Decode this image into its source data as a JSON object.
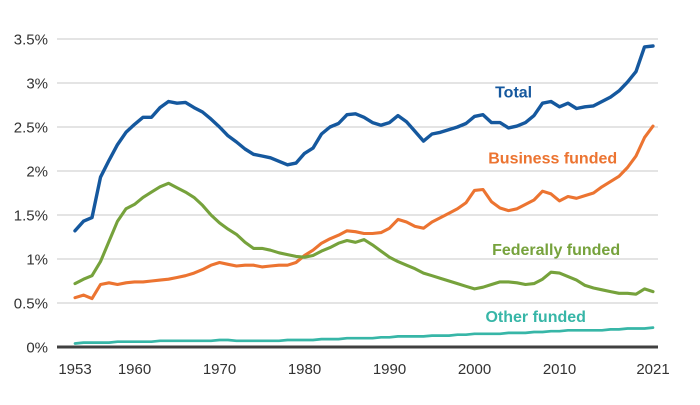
{
  "chart_data": {
    "type": "line",
    "title": "",
    "xlabel": "",
    "ylabel": "",
    "unit": "%",
    "ylim": [
      0,
      3.5
    ],
    "grid": "horizontal",
    "colors": {
      "axis": "#404040",
      "grid": "#c8c8c8",
      "tick_text": "#333333",
      "background": "#ffffff"
    },
    "yticks": [
      {
        "value": 0,
        "label": "0%"
      },
      {
        "value": 0.5,
        "label": "0.5%"
      },
      {
        "value": 1,
        "label": "1%"
      },
      {
        "value": 1.5,
        "label": "1.5%"
      },
      {
        "value": 2,
        "label": "2%"
      },
      {
        "value": 2.5,
        "label": "2.5%"
      },
      {
        "value": 3,
        "label": "3%"
      },
      {
        "value": 3.5,
        "label": "3.5%"
      }
    ],
    "xticks": [
      {
        "value": 1953,
        "label": "1953"
      },
      {
        "value": 1960,
        "label": "1960"
      },
      {
        "value": 1970,
        "label": "1970"
      },
      {
        "value": 1980,
        "label": "1980"
      },
      {
        "value": 1990,
        "label": "1990"
      },
      {
        "value": 2000,
        "label": "2000"
      },
      {
        "value": 2010,
        "label": "2010"
      },
      {
        "value": 2021,
        "label": "2021"
      }
    ],
    "x_start": 1953,
    "x_end": 2021,
    "series": [
      {
        "name": "Total",
        "color": "#15589E",
        "label": {
          "text": "Total",
          "year": 2004.6,
          "pct": 2.9
        },
        "values": [
          1.32,
          1.43,
          1.47,
          1.93,
          2.12,
          2.3,
          2.44,
          2.53,
          2.61,
          2.61,
          2.72,
          2.79,
          2.77,
          2.78,
          2.72,
          2.67,
          2.59,
          2.5,
          2.4,
          2.33,
          2.25,
          2.19,
          2.17,
          2.15,
          2.11,
          2.07,
          2.09,
          2.2,
          2.26,
          2.42,
          2.5,
          2.54,
          2.64,
          2.65,
          2.61,
          2.55,
          2.52,
          2.55,
          2.63,
          2.56,
          2.45,
          2.34,
          2.42,
          2.44,
          2.47,
          2.5,
          2.54,
          2.62,
          2.64,
          2.55,
          2.55,
          2.49,
          2.51,
          2.55,
          2.63,
          2.77,
          2.79,
          2.73,
          2.77,
          2.71,
          2.73,
          2.74,
          2.79,
          2.84,
          2.91,
          3.01,
          3.13,
          3.41,
          3.42
        ]
      },
      {
        "name": "Business funded",
        "color": "#EC7431",
        "label": {
          "text": "Business funded",
          "year": 2009.2,
          "pct": 2.15
        },
        "values": [
          0.56,
          0.59,
          0.55,
          0.71,
          0.73,
          0.71,
          0.73,
          0.74,
          0.74,
          0.75,
          0.76,
          0.77,
          0.79,
          0.81,
          0.84,
          0.88,
          0.93,
          0.96,
          0.94,
          0.92,
          0.93,
          0.93,
          0.91,
          0.92,
          0.93,
          0.93,
          0.96,
          1.04,
          1.1,
          1.18,
          1.23,
          1.27,
          1.32,
          1.31,
          1.29,
          1.29,
          1.3,
          1.35,
          1.45,
          1.42,
          1.37,
          1.35,
          1.42,
          1.47,
          1.52,
          1.57,
          1.64,
          1.78,
          1.79,
          1.65,
          1.58,
          1.55,
          1.57,
          1.62,
          1.67,
          1.77,
          1.74,
          1.66,
          1.71,
          1.69,
          1.72,
          1.75,
          1.82,
          1.88,
          1.94,
          2.04,
          2.17,
          2.38,
          2.51
        ]
      },
      {
        "name": "Federally funded",
        "color": "#76A23C",
        "label": {
          "text": "Federally funded",
          "year": 2009.6,
          "pct": 1.11
        },
        "values": [
          0.72,
          0.77,
          0.81,
          0.97,
          1.2,
          1.43,
          1.57,
          1.62,
          1.7,
          1.76,
          1.82,
          1.86,
          1.81,
          1.76,
          1.7,
          1.61,
          1.5,
          1.41,
          1.34,
          1.28,
          1.19,
          1.12,
          1.12,
          1.1,
          1.07,
          1.05,
          1.03,
          1.02,
          1.04,
          1.09,
          1.13,
          1.18,
          1.21,
          1.19,
          1.22,
          1.16,
          1.09,
          1.02,
          0.97,
          0.93,
          0.89,
          0.84,
          0.81,
          0.78,
          0.75,
          0.72,
          0.69,
          0.66,
          0.68,
          0.71,
          0.74,
          0.74,
          0.73,
          0.71,
          0.72,
          0.77,
          0.85,
          0.84,
          0.8,
          0.76,
          0.7,
          0.67,
          0.65,
          0.63,
          0.61,
          0.61,
          0.6,
          0.66,
          0.63
        ]
      },
      {
        "name": "Other funded",
        "color": "#37B6A7",
        "label": {
          "text": "Other funded",
          "year": 2007.2,
          "pct": 0.35
        },
        "values": [
          0.04,
          0.05,
          0.05,
          0.05,
          0.05,
          0.06,
          0.06,
          0.06,
          0.06,
          0.06,
          0.07,
          0.07,
          0.07,
          0.07,
          0.07,
          0.07,
          0.07,
          0.08,
          0.08,
          0.07,
          0.07,
          0.07,
          0.07,
          0.07,
          0.07,
          0.08,
          0.08,
          0.08,
          0.08,
          0.09,
          0.09,
          0.09,
          0.1,
          0.1,
          0.1,
          0.1,
          0.11,
          0.11,
          0.12,
          0.12,
          0.12,
          0.12,
          0.13,
          0.13,
          0.13,
          0.14,
          0.14,
          0.15,
          0.15,
          0.15,
          0.15,
          0.16,
          0.16,
          0.16,
          0.17,
          0.17,
          0.18,
          0.18,
          0.19,
          0.19,
          0.19,
          0.19,
          0.19,
          0.2,
          0.2,
          0.21,
          0.21,
          0.21,
          0.22
        ]
      }
    ]
  }
}
